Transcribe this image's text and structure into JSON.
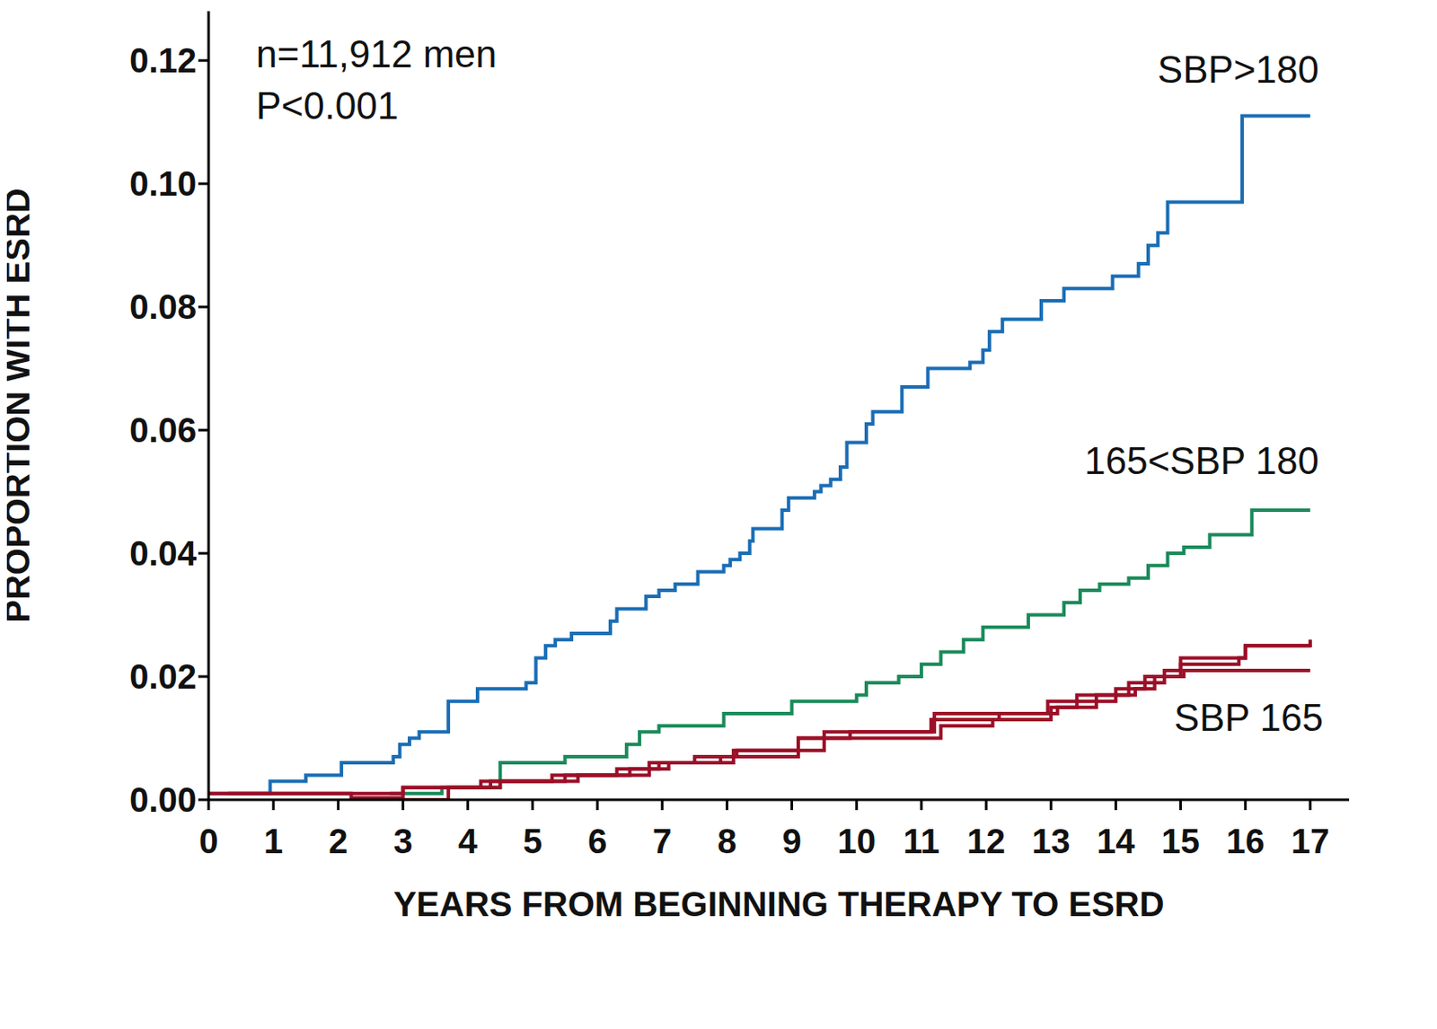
{
  "chart_data": {
    "type": "line",
    "annotations": [
      "n=11,912 men",
      "P<0.001"
    ],
    "x_label": "YEARS FROM BEGINNING THERAPY TO ESRD",
    "y_label": "PROPORTION WITH ESRD",
    "line_style": "step",
    "xlim": [
      0,
      17.6
    ],
    "xticks": [
      0,
      1,
      2,
      3,
      4,
      5,
      6,
      7,
      8,
      9,
      10,
      11,
      12,
      13,
      14,
      15,
      16,
      17
    ],
    "ylim": [
      0,
      0.128
    ],
    "yticks": [
      {
        "value": 0,
        "label": "0.00"
      },
      0.02,
      0.04,
      0.06,
      0.08,
      {
        "value": 0.1,
        "label": "0.10"
      },
      0.12
    ],
    "grid": false,
    "series": [
      {
        "name": "SBP>180",
        "color": "#1a6db5",
        "x": [
          0,
          0.95,
          1.5,
          2.05,
          2.7,
          2.85,
          2.95,
          3.1,
          3.25,
          3.7,
          4.15,
          4.9,
          5.05,
          5.2,
          5.35,
          5.6,
          6.2,
          6.3,
          6.75,
          6.95,
          7.2,
          7.55,
          7.95,
          8.05,
          8.2,
          8.35,
          8.4,
          8.85,
          8.95,
          9.35,
          9.45,
          9.6,
          9.75,
          9.85,
          10.15,
          10.25,
          10.7,
          11.1,
          11.75,
          11.95,
          12.05,
          12.25,
          12.85,
          13.2,
          13.95,
          14.35,
          14.5,
          14.65,
          14.8,
          15.95,
          17
        ],
        "values": [
          0.001,
          0.003,
          0.004,
          0.006,
          0.006,
          0.007,
          0.009,
          0.01,
          0.011,
          0.016,
          0.018,
          0.019,
          0.023,
          0.025,
          0.026,
          0.027,
          0.029,
          0.031,
          0.033,
          0.034,
          0.035,
          0.037,
          0.038,
          0.039,
          0.04,
          0.042,
          0.044,
          0.047,
          0.049,
          0.05,
          0.051,
          0.052,
          0.054,
          0.058,
          0.061,
          0.063,
          0.067,
          0.07,
          0.071,
          0.073,
          0.076,
          0.078,
          0.081,
          0.083,
          0.085,
          0.087,
          0.09,
          0.092,
          0.097,
          0.111,
          0.111
        ]
      },
      {
        "name": "165<SBP 180",
        "color": "#1a8a5a",
        "x": [
          2.8,
          3.6,
          4.5,
          5.5,
          6.45,
          6.65,
          6.95,
          7.95,
          9.0,
          10.0,
          10.15,
          10.65,
          11.0,
          11.3,
          11.65,
          11.95,
          12.65,
          13.2,
          13.45,
          13.75,
          14.2,
          14.5,
          14.8,
          15.05,
          15.45,
          16.1,
          17
        ],
        "values": [
          0.001,
          0.002,
          0.006,
          0.007,
          0.009,
          0.011,
          0.012,
          0.014,
          0.016,
          0.017,
          0.019,
          0.02,
          0.022,
          0.024,
          0.026,
          0.028,
          0.03,
          0.032,
          0.034,
          0.035,
          0.036,
          0.038,
          0.04,
          0.041,
          0.043,
          0.047,
          0.047
        ]
      },
      {
        "color": "#9b0f27",
        "x": [
          0,
          3.0,
          4.35,
          5.3,
          6.5,
          7.1,
          7.9,
          9.1,
          9.9,
          11.15,
          12.2,
          13.1,
          13.7,
          14.2,
          14.75,
          15.0,
          16.0,
          17
        ],
        "values": [
          0.001,
          0.002,
          0.003,
          0.004,
          0.005,
          0.006,
          0.007,
          0.01,
          0.011,
          0.013,
          0.014,
          0.015,
          0.017,
          0.019,
          0.021,
          0.023,
          0.025,
          0.025
        ]
      },
      {
        "name": "SBP 165",
        "color": "#9b0f27",
        "x": [
          2.2,
          3.7,
          4.5,
          5.5,
          6.3,
          6.95,
          7.5,
          8.15,
          9.5,
          10.1,
          11.2,
          12.3,
          12.95,
          14.0,
          14.45,
          15.05,
          17
        ],
        "values": [
          0.0,
          0.002,
          0.003,
          0.004,
          0.005,
          0.006,
          0.007,
          0.008,
          0.011,
          0.011,
          0.014,
          0.014,
          0.016,
          0.018,
          0.02,
          0.021,
          0.021
        ]
      },
      {
        "color": "#9b0f27",
        "x": [
          0.3,
          2.2,
          3.0,
          4.2,
          5.7,
          6.8,
          8.1,
          9.1,
          11.3,
          12.1,
          13.0,
          13.4,
          14.3,
          14.6,
          15.0,
          15.9,
          16.0,
          17
        ],
        "values": [
          0.001,
          0.0003,
          0.002,
          0.003,
          0.004,
          0.006,
          0.008,
          0.01,
          0.012,
          0.013,
          0.015,
          0.017,
          0.018,
          0.02,
          0.022,
          0.023,
          0.025,
          0.026
        ]
      }
    ]
  }
}
